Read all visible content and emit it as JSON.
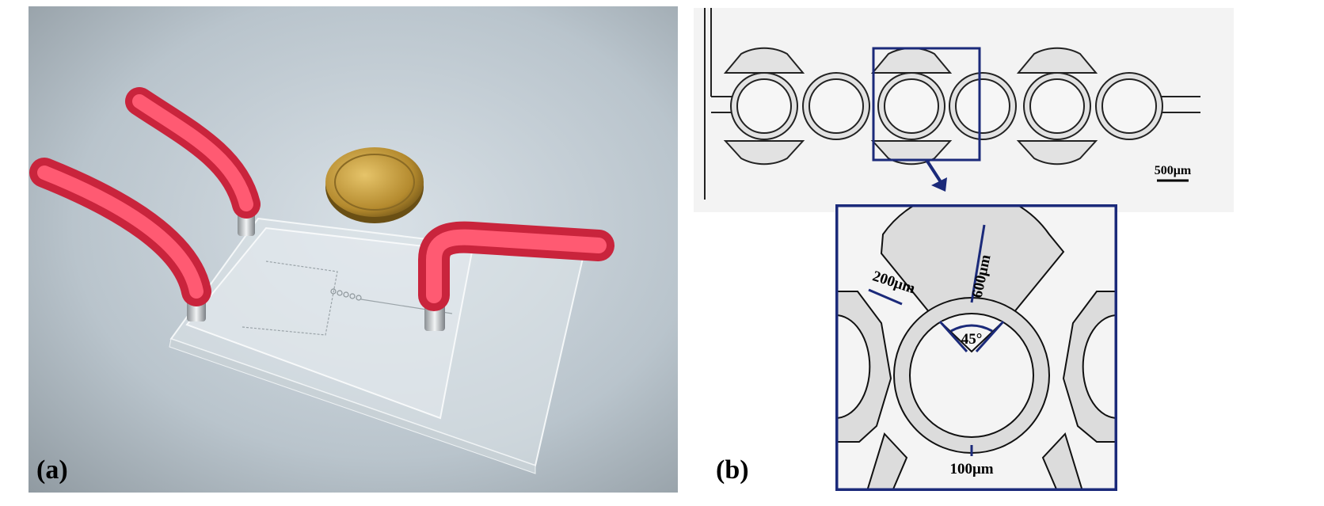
{
  "figure": {
    "panel_a_label": "(a)",
    "panel_b_label": "(b)",
    "scale_bar_label": "500μm",
    "dimensions": {
      "sector_gap": "200μm",
      "radial_length": "600μm",
      "angle": "45°",
      "ring_width": "100μm"
    }
  },
  "colors": {
    "frame_blue": "#1b2a7a",
    "tube_red": "#ef3b55",
    "channel_fill": "#dcdcdc"
  }
}
